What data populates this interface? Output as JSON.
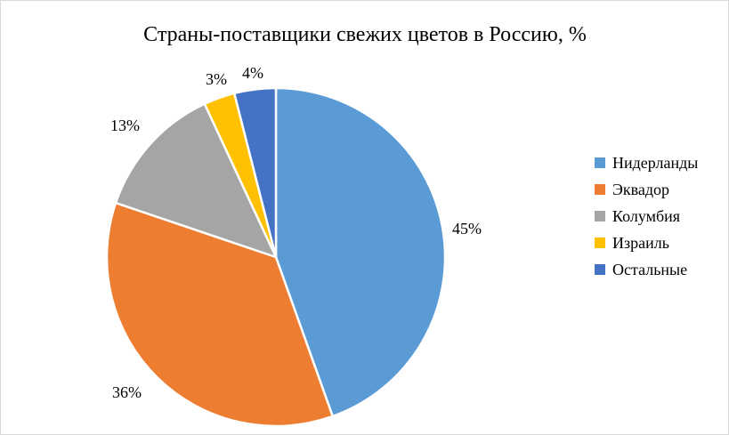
{
  "chart_data": {
    "type": "pie",
    "title": "Страны-поставщики свежих цветов в Россию, %",
    "categories": [
      "Нидерланды",
      "Эквадор",
      "Колумбия",
      "Израиль",
      "Остальные"
    ],
    "values": [
      45,
      36,
      13,
      3,
      4
    ],
    "data_labels": [
      "45%",
      "36%",
      "13%",
      "3%",
      "4%"
    ],
    "colors": [
      "#5b9bd5",
      "#ed7d31",
      "#a5a5a5",
      "#ffc000",
      "#4472c4"
    ],
    "legend_position": "right",
    "start_angle_deg": 0,
    "direction": "clockwise"
  }
}
